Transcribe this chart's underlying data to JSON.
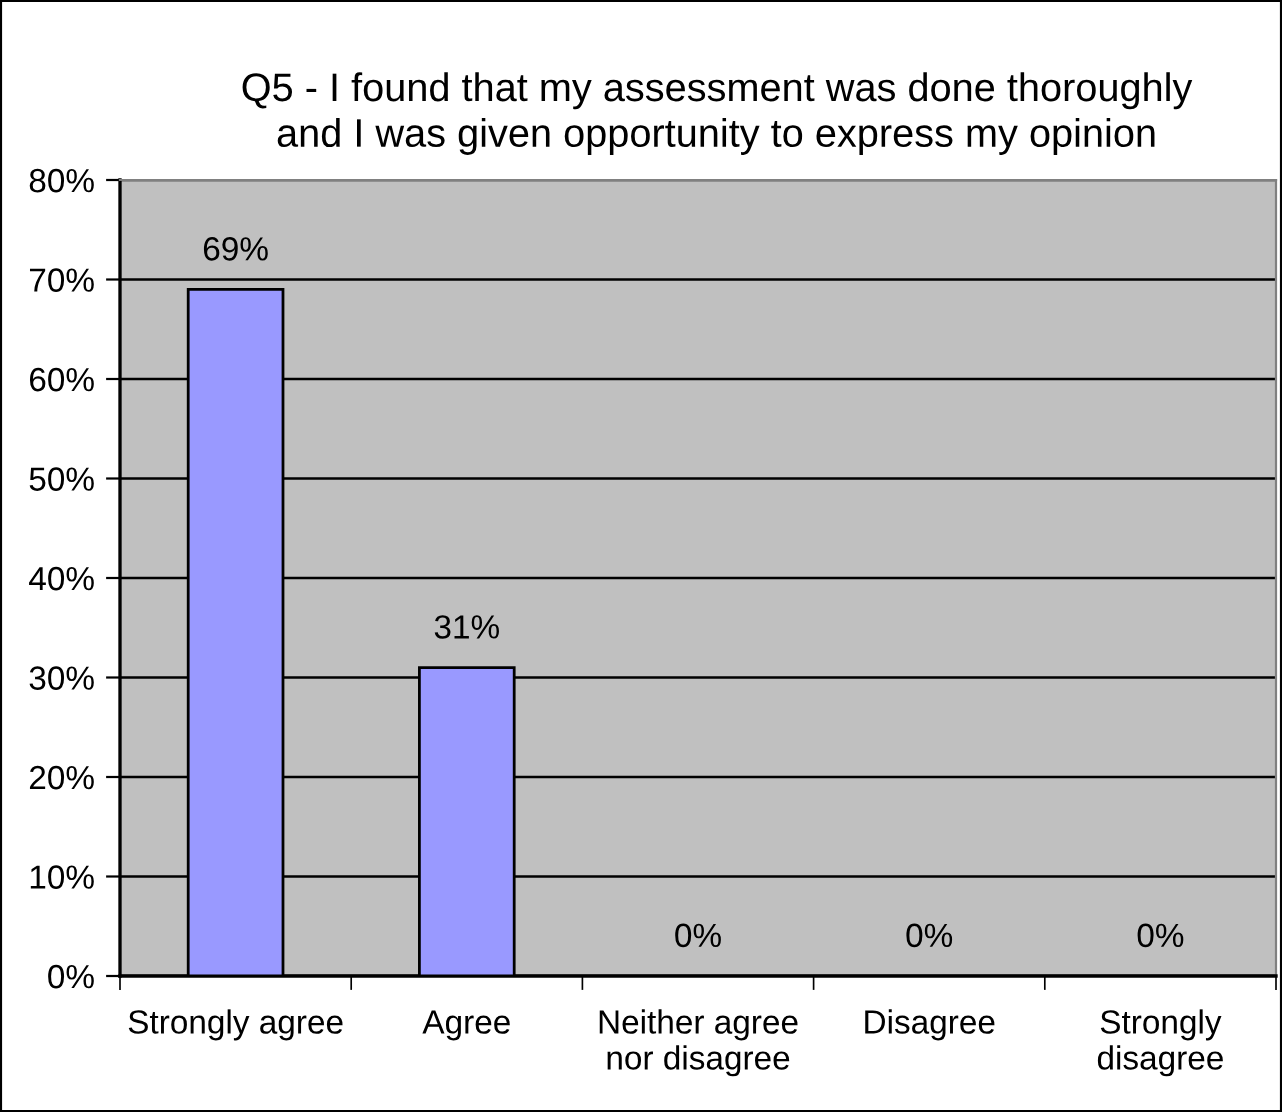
{
  "chart_data": {
    "type": "bar",
    "title": "Q5 - I found that my assessment was done thoroughly\nand I was given opportunity to express my opinion",
    "categories": [
      "Strongly agree",
      "Agree",
      "Neither agree\nnor disagree",
      "Disagree",
      "Strongly\ndisagree"
    ],
    "values": [
      69,
      31,
      0,
      0,
      0
    ],
    "color": "#9999ff",
    "value_labels": [
      "69%",
      "31%",
      "0%",
      "0%",
      "0%"
    ],
    "ylim": [
      0,
      80
    ],
    "yticks": [
      {
        "value": 0,
        "label": "0%"
      },
      {
        "value": 10,
        "label": "10%"
      },
      {
        "value": 20,
        "label": "20%"
      },
      {
        "value": 30,
        "label": "30%"
      },
      {
        "value": 40,
        "label": "40%"
      },
      {
        "value": 50,
        "label": "50%"
      },
      {
        "value": 60,
        "label": "60%"
      },
      {
        "value": 70,
        "label": "70%"
      },
      {
        "value": 80,
        "label": "80%"
      }
    ],
    "grid": "y",
    "legend": false
  }
}
